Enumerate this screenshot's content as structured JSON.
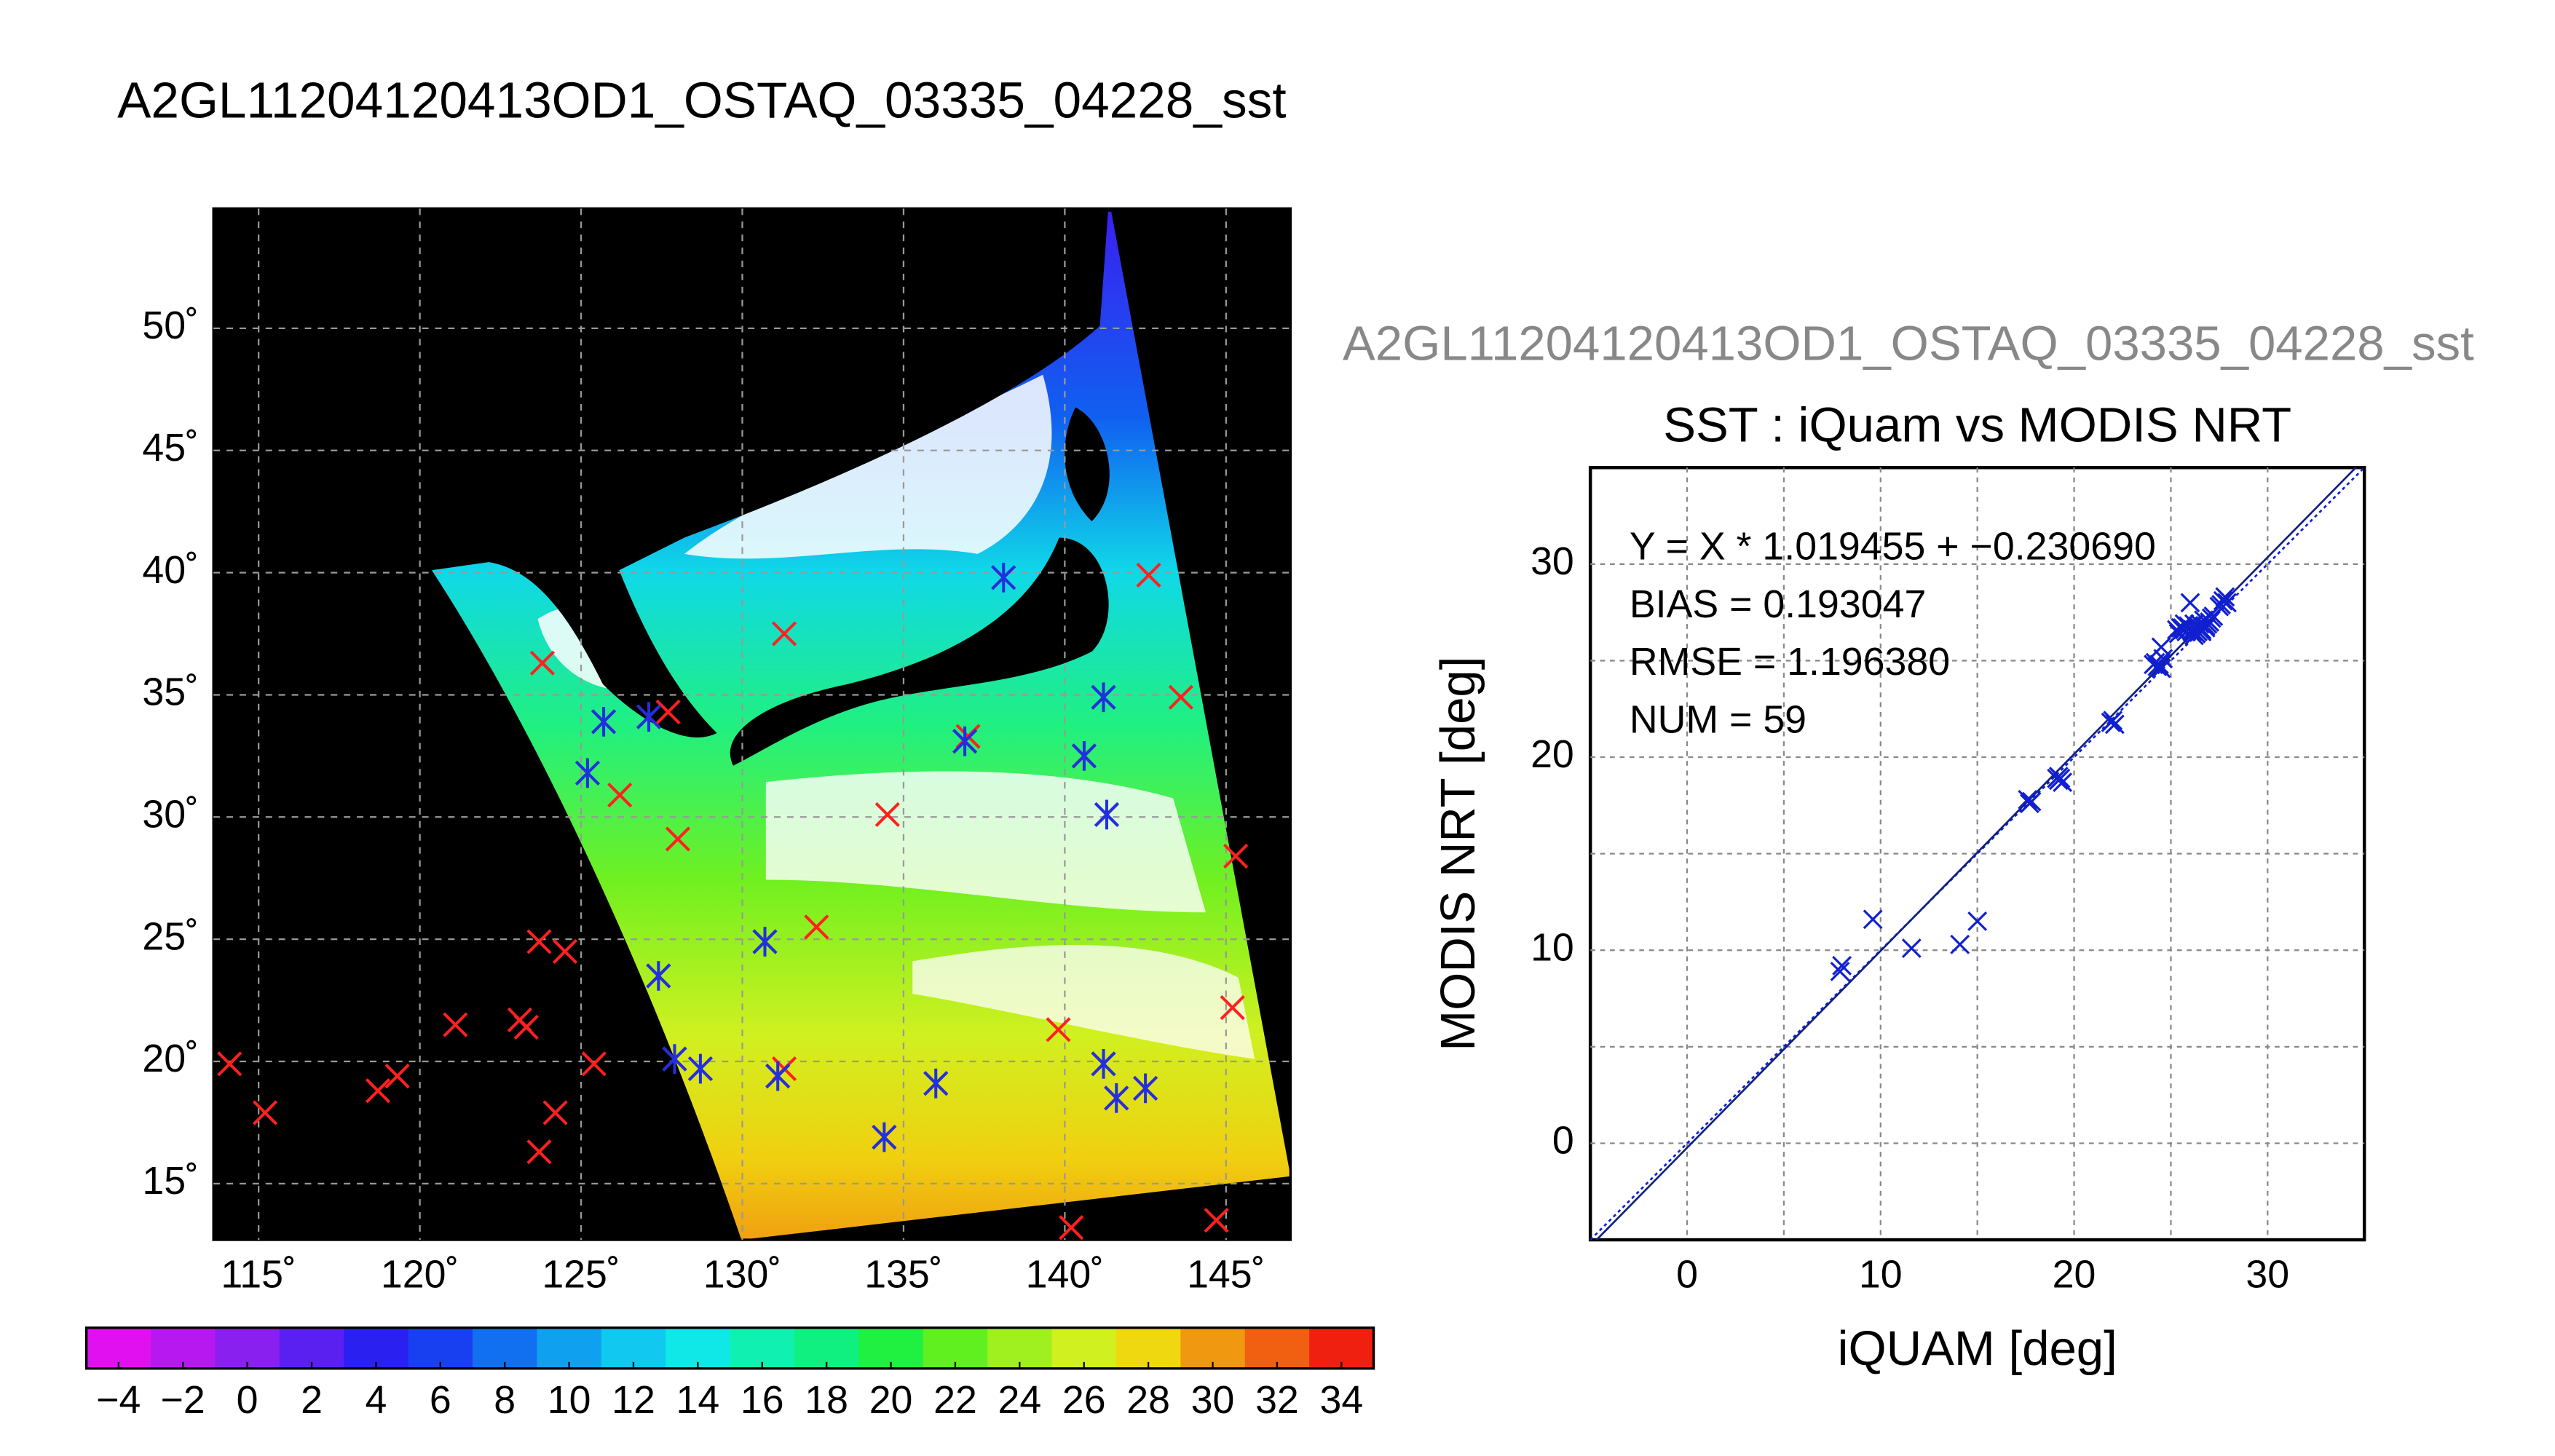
{
  "chart_data": [
    {
      "type": "map",
      "title": "A2GL11204120413OD1_OSTAQ_03335_04228_sst",
      "xlim": [
        113.6,
        147.0
      ],
      "ylim": [
        12.7,
        54.9
      ],
      "xticks": [
        {
          "value": 115,
          "label": "115˚"
        },
        {
          "value": 120,
          "label": "120˚"
        },
        {
          "value": 125,
          "label": "125˚"
        },
        {
          "value": 130,
          "label": "130˚"
        },
        {
          "value": 135,
          "label": "135˚"
        },
        {
          "value": 140,
          "label": "140˚"
        },
        {
          "value": 145,
          "label": "145˚"
        }
      ],
      "yticks": [
        {
          "value": 15,
          "label": "15˚"
        },
        {
          "value": 20,
          "label": "20˚"
        },
        {
          "value": 25,
          "label": "25˚"
        },
        {
          "value": 30,
          "label": "30˚"
        },
        {
          "value": 35,
          "label": "35˚"
        },
        {
          "value": 40,
          "label": "40˚"
        },
        {
          "value": 45,
          "label": "45˚"
        },
        {
          "value": 50,
          "label": "50˚"
        }
      ],
      "grid": true,
      "markers": [
        {
          "color": "#ff2020",
          "symbol": "x",
          "lon": [
            114.1,
            115.2,
            118.7,
            119.3,
            121.1,
            123.1,
            123.3,
            123.7,
            124.2,
            123.7,
            124.5,
            125.4,
            123.8,
            125.7,
            126.2,
            127.1,
            127.7,
            128.0,
            127.4,
            127.9,
            128.7,
            130.7,
            131.1,
            131.3,
            131.3,
            132.3,
            134.5,
            134.4,
            136.0,
            136.9,
            137.0,
            138.1,
            139.8,
            140.2,
            140.6,
            141.2,
            141.2,
            141.3,
            141.6,
            142.5,
            142.6,
            143.6,
            144.7,
            145.2,
            145.3
          ],
          "lat": [
            19.9,
            17.9,
            18.8,
            19.4,
            21.5,
            21.7,
            21.4,
            16.3,
            17.9,
            24.9,
            24.5,
            19.9,
            36.3,
            33.9,
            30.9,
            34.1,
            34.3,
            29.1,
            23.5,
            20.1,
            19.7,
            24.9,
            19.4,
            19.7,
            37.5,
            25.5,
            30.1,
            16.9,
            19.1,
            33.1,
            33.3,
            39.8,
            21.3,
            13.2,
            32.5,
            34.9,
            19.9,
            30.1,
            18.5,
            18.9,
            39.9,
            34.9,
            13.5,
            22.2,
            28.4
          ]
        },
        {
          "color": "#2030e0",
          "symbol": "asterisk",
          "lon": [
            125.2,
            125.7,
            127.1,
            127.4,
            127.9,
            128.7,
            130.7,
            131.1,
            134.4,
            136.0,
            136.9,
            138.1,
            140.6,
            141.2,
            141.2,
            141.3,
            141.6,
            142.5
          ],
          "lat": [
            31.8,
            33.9,
            34.1,
            23.5,
            20.1,
            19.7,
            24.9,
            19.4,
            16.9,
            19.1,
            33.1,
            39.8,
            32.5,
            34.9,
            19.9,
            30.1,
            18.5,
            18.9
          ]
        }
      ],
      "colorbar": {
        "lim": [
          -5,
          35
        ],
        "ticks": [
          {
            "value": -4,
            "label": "−4"
          },
          {
            "value": -2,
            "label": "−2"
          },
          0,
          2,
          4,
          6,
          8,
          10,
          12,
          14,
          16,
          18,
          20,
          22,
          24,
          26,
          28,
          30,
          32,
          34
        ],
        "colors": [
          "#e010f0",
          "#b818f0",
          "#8a20f0",
          "#5a20f0",
          "#2a20f0",
          "#1840f0",
          "#1070f0",
          "#10a0f0",
          "#10c8f0",
          "#10e8e8",
          "#10f0b0",
          "#10f080",
          "#20f040",
          "#60f020",
          "#a0f020",
          "#d0f020",
          "#f0d810",
          "#f09810",
          "#f06010",
          "#f02010"
        ]
      }
    },
    {
      "type": "scatter",
      "subtitle": "A2GL11204120413OD1_OSTAQ_03335_04228_sst",
      "title": "SST : iQuam vs MODIS NRT",
      "xlabel": "iQUAM [deg]",
      "ylabel": "MODIS NRT [deg]",
      "annotations": [
        "Y = X * 1.019455 + −0.230690",
        "BIAS = 0.193047",
        "RMSE = 1.196380",
        "NUM = 59"
      ],
      "fit": {
        "slope": 1.019455,
        "intercept": -0.23069
      },
      "xlim": [
        -5,
        35
      ],
      "ylim": [
        -5,
        35
      ],
      "xticks": [
        0,
        10,
        20,
        30
      ],
      "yticks": [
        0,
        10,
        20,
        30
      ],
      "minor_grid": [
        5,
        15,
        25
      ],
      "grid": true,
      "color": "#1020d0",
      "x": [
        7.9,
        8.0,
        9.6,
        11.6,
        14.1,
        15.0,
        17.6,
        17.7,
        17.8,
        19.1,
        19.2,
        19.4,
        19.2,
        19.3,
        21.9,
        22.1,
        22.0,
        24.1,
        24.2,
        24.5,
        24.5,
        24.3,
        24.4,
        25.5,
        25.7,
        26.0,
        25.8,
        26.1,
        26.2,
        26.5,
        26.7,
        26.9,
        27.7,
        27.8,
        25.6,
        25.9,
        26.3,
        26.4,
        26.6,
        26.8,
        27.0,
        25.4,
        25.7,
        26.0,
        26.2,
        26.4,
        26.6,
        26.8,
        27.1,
        27.5,
        27.9,
        25.3,
        25.6,
        26.1,
        26.3,
        26.5,
        27.2,
        27.6,
        24.6
      ],
      "values": [
        8.9,
        9.2,
        11.6,
        10.1,
        10.3,
        11.5,
        17.8,
        17.6,
        17.7,
        18.9,
        18.8,
        18.7,
        19.0,
        18.9,
        21.8,
        21.7,
        21.9,
        24.8,
        24.9,
        25.7,
        24.6,
        24.7,
        24.8,
        26.7,
        26.9,
        28.0,
        26.5,
        26.6,
        26.3,
        26.7,
        27.1,
        26.9,
        28.1,
        28.3,
        26.6,
        26.8,
        26.4,
        26.5,
        26.6,
        26.8,
        27.0,
        26.4,
        26.6,
        26.7,
        26.9,
        26.8,
        26.5,
        26.7,
        27.2,
        27.8,
        28.0,
        26.6,
        26.7,
        26.5,
        26.4,
        26.9,
        27.3,
        27.9,
        25.1
      ]
    }
  ]
}
